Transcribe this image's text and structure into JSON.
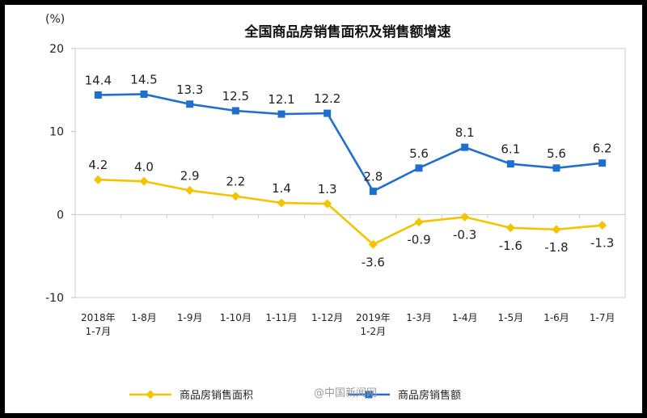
{
  "chart_data": {
    "type": "line",
    "title": "全国商品房销售面积及销售额增速",
    "unit_label": "(%)",
    "ylim": [
      -10,
      20
    ],
    "yticks": [
      20,
      10,
      0,
      -10
    ],
    "categories": [
      "2018年 1-7月",
      "1-8月",
      "1-9月",
      "1-10月",
      "1-11月",
      "1-12月",
      "2019年 1-2月",
      "1-3月",
      "1-4月",
      "1-5月",
      "1-6月",
      "1-7月"
    ],
    "category_lines": [
      [
        "2018年",
        "1-7月"
      ],
      [
        "1-8月"
      ],
      [
        "1-9月"
      ],
      [
        "1-10月"
      ],
      [
        "1-11月"
      ],
      [
        "1-12月"
      ],
      [
        "2019年",
        "1-2月"
      ],
      [
        "1-3月"
      ],
      [
        "1-4月"
      ],
      [
        "1-5月"
      ],
      [
        "1-6月"
      ],
      [
        "1-7月"
      ]
    ],
    "series": [
      {
        "name": "商品房销售面积",
        "color": "#f5c400",
        "marker": "diamond",
        "values": [
          4.2,
          4.0,
          2.9,
          2.2,
          1.4,
          1.3,
          -3.6,
          -0.9,
          -0.3,
          -1.6,
          -1.8,
          -1.3
        ],
        "labels": [
          "4.2",
          "4.0",
          "2.9",
          "2.2",
          "1.4",
          "1.3",
          "-3.6",
          "-0.9",
          "-0.3",
          "-1.6",
          "-1.8",
          "-1.3"
        ]
      },
      {
        "name": "商品房销售额",
        "color": "#1f6fd1",
        "marker": "square",
        "values": [
          14.4,
          14.5,
          13.3,
          12.5,
          12.1,
          12.2,
          2.8,
          5.6,
          8.1,
          6.1,
          5.6,
          6.2
        ],
        "labels": [
          "14.4",
          "14.5",
          "13.3",
          "12.5",
          "12.1",
          "12.2",
          "2.8",
          "5.6",
          "8.1",
          "6.1",
          "5.6",
          "6.2"
        ]
      }
    ],
    "grid": false,
    "legend_position": "bottom"
  },
  "watermark": "@中国新闻网"
}
